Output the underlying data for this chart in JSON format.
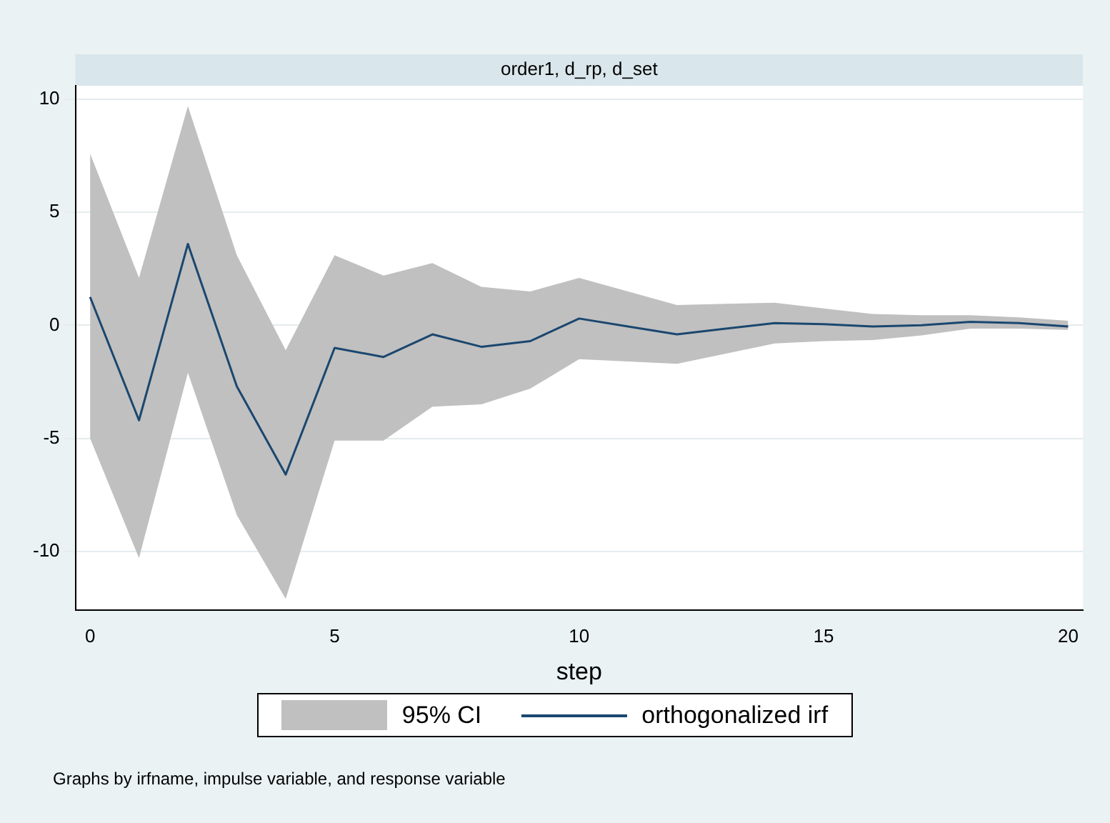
{
  "chart_data": {
    "type": "line",
    "title": "order1, d_rp, d_set",
    "xlabel": "step",
    "annotations": [
      "Graphs by irfname, impulse variable, and response variable"
    ],
    "x": [
      0,
      1,
      2,
      3,
      4,
      5,
      6,
      7,
      8,
      9,
      10,
      11,
      12,
      13,
      14,
      15,
      16,
      17,
      18,
      19,
      20
    ],
    "series": [
      {
        "name": "95% CI",
        "type": "area",
        "color": "#c0c0c0",
        "values": [
          null,
          null,
          null,
          null,
          null,
          null,
          null,
          null,
          null,
          null,
          null,
          null,
          null,
          null,
          null,
          null,
          null,
          null,
          null,
          null,
          null
        ]
      },
      {
        "name": "orthogonalized irf",
        "type": "line",
        "color": "#1a476f",
        "values": [
          1.25,
          -4.2,
          3.6,
          -2.7,
          -6.6,
          -1.0,
          -1.4,
          -0.4,
          -0.95,
          -0.7,
          0.3,
          -0.05,
          -0.4,
          -0.15,
          0.1,
          0.05,
          -0.05,
          0.0,
          0.15,
          0.1,
          -0.05
        ],
        "lower": [
          -5.0,
          -10.3,
          -2.1,
          -8.4,
          -12.1,
          -5.1,
          -5.1,
          -3.6,
          -3.5,
          -2.8,
          -1.5,
          -1.6,
          -1.7,
          -1.25,
          -0.8,
          -0.7,
          -0.65,
          -0.45,
          -0.15,
          -0.15,
          -0.2
        ],
        "upper": [
          7.6,
          2.1,
          9.7,
          3.1,
          -1.1,
          3.1,
          2.2,
          2.75,
          1.7,
          1.5,
          2.1,
          1.5,
          0.9,
          0.95,
          1.0,
          0.75,
          0.5,
          0.45,
          0.45,
          0.35,
          0.2
        ]
      }
    ],
    "xlim": [
      -0.3,
      20.3
    ],
    "ylim": [
      -12.6,
      10.6
    ],
    "xticks": [
      0,
      5,
      10,
      15,
      20
    ],
    "yticks": [
      -10,
      -5,
      0,
      5,
      10
    ],
    "grid": "y",
    "legend": "bottom",
    "marker": "none",
    "line_style": "solid"
  }
}
